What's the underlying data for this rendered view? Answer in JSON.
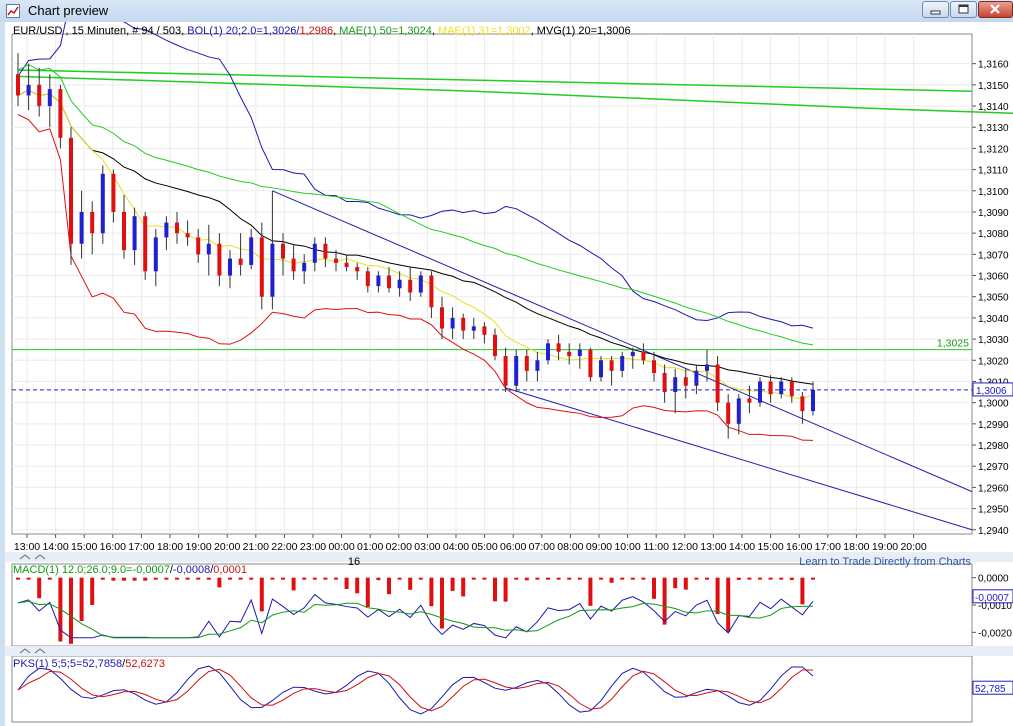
{
  "window": {
    "title": "Chart preview",
    "controls": [
      "minimize-icon",
      "maximize-icon",
      "close-icon"
    ]
  },
  "main_chart": {
    "header": {
      "symbol": "EUR/USD , 15 Minuten, # 94 / 503, ",
      "bol_a": "BOL(1) 20;2.0=1,3026/",
      "bol_b": "1,2986",
      "mae_sep": ", ",
      "mae": "MAE(1) 50=1,3024",
      "mae2": "MAE(1) 31=1,3002",
      "mvg_sep": ", ",
      "mvg": "MVG(1) 20=1,3006"
    },
    "y_ticks": [
      "1,3160",
      "1,3150",
      "1,3140",
      "1,3130",
      "1,3120",
      "1,3110",
      "1,3100",
      "1,3090",
      "1,3080",
      "1,3070",
      "1,3060",
      "1,3050",
      "1,3040",
      "1,3030",
      "1,3020",
      "1,3010",
      "1,3000",
      "1,2990",
      "1,2980",
      "1,2970",
      "1,2960",
      "1,2950",
      "1,2940"
    ],
    "level_label": "1,3025",
    "price_tag": "1,3006",
    "x_ticks": [
      "13:00",
      "14:00",
      "15:00",
      "16:00",
      "17:00",
      "18:00",
      "19:00",
      "20:00",
      "21:00",
      "22:00",
      "23:00",
      "00:00",
      "01:00",
      "02:00",
      "03:00",
      "04:00",
      "05:00",
      "06:00",
      "07:00",
      "08:00",
      "09:00",
      "10:00",
      "11:00",
      "12:00",
      "13:00",
      "14:00",
      "15:00",
      "16:00",
      "17:00",
      "18:00",
      "19:00",
      "20:00"
    ],
    "date_label": "16",
    "link_text": "Learn to Trade Directly from Charts"
  },
  "macd_panel": {
    "header": {
      "label": "MACD(1) 12.0;26.0;9.0=",
      "v1": "-0,0007",
      "sep1": "/",
      "v2": "-0,0008",
      "sep2": "/",
      "v3": "0,0001"
    },
    "y_ticks": [
      "0,0000",
      "-0,0010",
      "-0,0020"
    ],
    "value_tag": "-0,0007"
  },
  "pks_panel": {
    "header": {
      "label": "PKS(1) 5;5;5=",
      "v1": "52,7858",
      "sep": "/",
      "v2": "52,6273"
    },
    "value_tag": "52,785"
  },
  "colors": {
    "candle_up": "#1f20d0",
    "candle_down": "#e01010",
    "bollinger": "#1a1ab0",
    "mae50": "#22cc22",
    "mae31": "#ffff00",
    "mvg": "#000000",
    "macd_line": "#1a1ab0",
    "macd_signal": "#119911",
    "macd_hist": "#e01010",
    "pks_k": "#1a1ab0",
    "pks_d": "#cc1111"
  },
  "chart_data": {
    "type": "candlestick",
    "symbol": "EUR/USD",
    "interval": "15 Minuten",
    "ylim": [
      1.2938,
      1.3174
    ],
    "candles": [
      [
        1.3155,
        1.3165,
        1.314,
        1.3145
      ],
      [
        1.3145,
        1.316,
        1.3138,
        1.315
      ],
      [
        1.315,
        1.3158,
        1.3135,
        1.314
      ],
      [
        1.314,
        1.3155,
        1.313,
        1.3148
      ],
      [
        1.3148,
        1.315,
        1.312,
        1.3125
      ],
      [
        1.3125,
        1.313,
        1.3065,
        1.3075
      ],
      [
        1.3075,
        1.31,
        1.3068,
        1.309
      ],
      [
        1.309,
        1.3095,
        1.307,
        1.308
      ],
      [
        1.308,
        1.3112,
        1.3075,
        1.3108
      ],
      [
        1.3108,
        1.311,
        1.3085,
        1.309
      ],
      [
        1.309,
        1.3098,
        1.3068,
        1.3072
      ],
      [
        1.3072,
        1.3092,
        1.3065,
        1.3088
      ],
      [
        1.3088,
        1.309,
        1.3058,
        1.3062
      ],
      [
        1.3062,
        1.3082,
        1.3055,
        1.3078
      ],
      [
        1.3078,
        1.3088,
        1.3072,
        1.3085
      ],
      [
        1.3085,
        1.309,
        1.3075,
        1.308
      ],
      [
        1.308,
        1.3086,
        1.3074,
        1.3078
      ],
      [
        1.3078,
        1.3082,
        1.3066,
        1.307
      ],
      [
        1.307,
        1.3084,
        1.306,
        1.3075
      ],
      [
        1.3075,
        1.308,
        1.3055,
        1.306
      ],
      [
        1.306,
        1.3072,
        1.3054,
        1.3068
      ],
      [
        1.3068,
        1.308,
        1.306,
        1.3065
      ],
      [
        1.3065,
        1.3082,
        1.3063,
        1.3078
      ],
      [
        1.3078,
        1.3085,
        1.3044,
        1.305
      ],
      [
        1.305,
        1.31,
        1.3044,
        1.3075
      ],
      [
        1.3075,
        1.308,
        1.306,
        1.3068
      ],
      [
        1.3068,
        1.3075,
        1.3058,
        1.3062
      ],
      [
        1.3062,
        1.307,
        1.3056,
        1.3066
      ],
      [
        1.3066,
        1.3078,
        1.3062,
        1.3075
      ],
      [
        1.3075,
        1.3078,
        1.3064,
        1.3068
      ],
      [
        1.3068,
        1.3072,
        1.3062,
        1.3066
      ],
      [
        1.3066,
        1.307,
        1.3062,
        1.3064
      ],
      [
        1.3064,
        1.3066,
        1.3058,
        1.3062
      ],
      [
        1.3062,
        1.3064,
        1.3052,
        1.3055
      ],
      [
        1.3055,
        1.3062,
        1.3052,
        1.306
      ],
      [
        1.306,
        1.3064,
        1.3052,
        1.3054
      ],
      [
        1.3054,
        1.3062,
        1.305,
        1.3058
      ],
      [
        1.3058,
        1.3064,
        1.3048,
        1.3052
      ],
      [
        1.3052,
        1.3062,
        1.305,
        1.306
      ],
      [
        1.306,
        1.3062,
        1.304,
        1.3045
      ],
      [
        1.3045,
        1.305,
        1.303,
        1.3035
      ],
      [
        1.3035,
        1.3045,
        1.303,
        1.304
      ],
      [
        1.304,
        1.3042,
        1.303,
        1.3034
      ],
      [
        1.3034,
        1.304,
        1.303,
        1.3036
      ],
      [
        1.3036,
        1.3038,
        1.3028,
        1.3032
      ],
      [
        1.3032,
        1.3035,
        1.302,
        1.3022
      ],
      [
        1.3022,
        1.3026,
        1.3005,
        1.3008
      ],
      [
        1.3008,
        1.3025,
        1.3005,
        1.3022
      ],
      [
        1.3022,
        1.3025,
        1.301,
        1.3015
      ],
      [
        1.3015,
        1.3024,
        1.301,
        1.302
      ],
      [
        1.302,
        1.303,
        1.3018,
        1.3028
      ],
      [
        1.3028,
        1.3032,
        1.302,
        1.3024
      ],
      [
        1.3024,
        1.3028,
        1.3018,
        1.3022
      ],
      [
        1.3022,
        1.3028,
        1.3016,
        1.3025
      ],
      [
        1.3025,
        1.3026,
        1.301,
        1.3012
      ],
      [
        1.3012,
        1.3022,
        1.301,
        1.302
      ],
      [
        1.302,
        1.3022,
        1.3008,
        1.3015
      ],
      [
        1.3015,
        1.3024,
        1.3012,
        1.3022
      ],
      [
        1.3022,
        1.3026,
        1.3016,
        1.3024
      ],
      [
        1.3024,
        1.3028,
        1.3018,
        1.302
      ],
      [
        1.302,
        1.3024,
        1.301,
        1.3014
      ],
      [
        1.3014,
        1.3018,
        1.3,
        1.3005
      ],
      [
        1.3005,
        1.3016,
        1.2995,
        1.3012
      ],
      [
        1.3012,
        1.3016,
        1.3002,
        1.3008
      ],
      [
        1.3008,
        1.3018,
        1.3004,
        1.3015
      ],
      [
        1.3015,
        1.3025,
        1.301,
        1.3018
      ],
      [
        1.3018,
        1.3022,
        1.2996,
        1.3
      ],
      [
        1.3,
        1.3004,
        1.2983,
        1.299
      ],
      [
        1.299,
        1.3004,
        1.2985,
        1.3002
      ],
      [
        1.3002,
        1.3008,
        1.2995,
        1.3
      ],
      [
        1.3,
        1.3012,
        1.2998,
        1.301
      ],
      [
        1.301,
        1.3013,
        1.3,
        1.3004
      ],
      [
        1.3004,
        1.3012,
        1.3002,
        1.301
      ],
      [
        1.301,
        1.3012,
        1.3,
        1.3003
      ],
      [
        1.3003,
        1.3005,
        1.299,
        1.2996
      ],
      [
        1.2996,
        1.301,
        1.2994,
        1.3006
      ]
    ],
    "mae50_line": [
      [
        0,
        1.3154
      ],
      [
        43,
        1.3147
      ],
      [
        80,
        1.3139
      ],
      [
        120,
        1.3132
      ],
      [
        150,
        1.3126
      ],
      [
        180,
        1.3118
      ],
      [
        210,
        1.3109
      ],
      [
        240,
        1.31
      ]
    ],
    "level_line": 1.3025,
    "current_price": 1.3006
  }
}
